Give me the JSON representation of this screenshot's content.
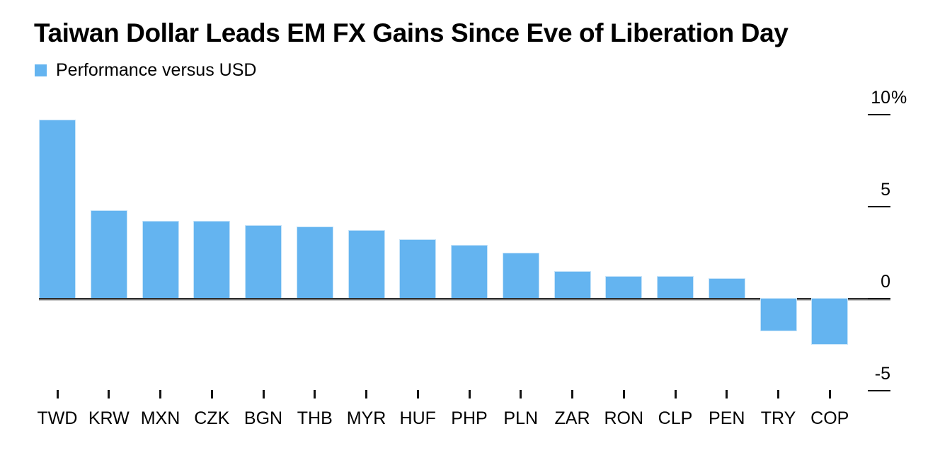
{
  "title": "Taiwan Dollar Leads EM FX Gains Since Eve of Liberation Day",
  "legend": {
    "label": "Performance versus USD",
    "swatch_color": "#64B4F0"
  },
  "chart_data": {
    "type": "bar",
    "title": "Taiwan Dollar Leads EM FX Gains Since Eve of Liberation Day",
    "series_name": "Performance versus USD",
    "categories": [
      "TWD",
      "KRW",
      "MXN",
      "CZK",
      "BGN",
      "THB",
      "MYR",
      "HUF",
      "PHP",
      "PLN",
      "ZAR",
      "RON",
      "CLP",
      "PEN",
      "TRY",
      "COP"
    ],
    "values": [
      9.7,
      4.8,
      4.2,
      4.2,
      4.0,
      3.9,
      3.7,
      3.2,
      2.9,
      2.5,
      1.5,
      1.2,
      1.2,
      1.1,
      -1.8,
      -2.5
    ],
    "unit": "%",
    "xlabel": "",
    "ylabel": "",
    "y_ticks": [
      10,
      5,
      0,
      -5
    ],
    "y_tick_labels": [
      "10%",
      "5",
      "0",
      "-5"
    ],
    "ylim": [
      -5.5,
      10.5
    ],
    "grid": false,
    "axis_side": "right",
    "legend_position": "top-left",
    "bar_color": "#64B4F0",
    "axis_color": "#2e2e2e",
    "text_color": "#000000"
  }
}
